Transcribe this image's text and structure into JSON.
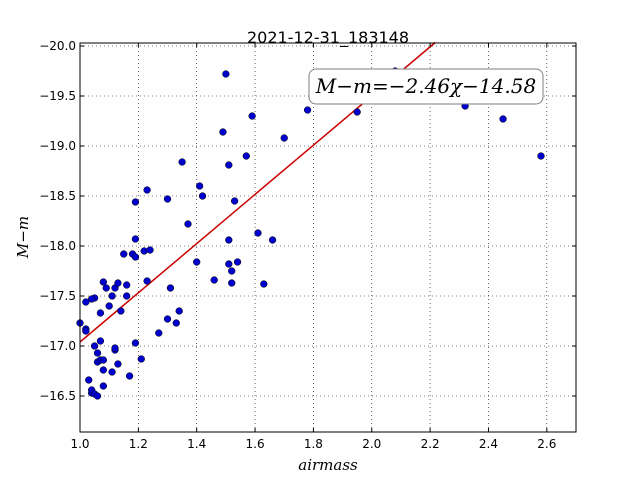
{
  "chart_data": {
    "type": "scatter",
    "title": "2021-12-31_183148",
    "xlabel": "airmass",
    "ylabel": "M−m",
    "xlim": [
      1.0,
      2.7
    ],
    "ylim": [
      -20.03,
      -16.14
    ],
    "y_inverted": true,
    "grid": true,
    "xticks": [
      "1.0",
      "1.2",
      "1.4",
      "1.6",
      "1.8",
      "2.0",
      "2.2",
      "2.4",
      "2.6"
    ],
    "xtick_values": [
      1.0,
      1.2,
      1.4,
      1.6,
      1.8,
      2.0,
      2.2,
      2.4,
      2.6
    ],
    "yticks": [
      "−16.5",
      "−17.0",
      "−17.5",
      "−18.0",
      "−18.5",
      "−19.0",
      "−19.5",
      "−20.0"
    ],
    "ytick_values": [
      -16.5,
      -17.0,
      -17.5,
      -18.0,
      -18.5,
      -19.0,
      -19.5,
      -20.0
    ],
    "annotation": "M−m=−2.46χ−14.58",
    "fit": {
      "slope": -2.46,
      "intercept": -14.58,
      "x_start": 1.0,
      "x_end": 2.218,
      "color": "#cc0000"
    },
    "point_color": "#0000cc",
    "points": [
      {
        "x": 1.0,
        "y": -17.23
      },
      {
        "x": 1.02,
        "y": -17.17
      },
      {
        "x": 1.02,
        "y": -17.15
      },
      {
        "x": 1.02,
        "y": -17.44
      },
      {
        "x": 1.03,
        "y": -16.66
      },
      {
        "x": 1.04,
        "y": -16.53
      },
      {
        "x": 1.04,
        "y": -16.56
      },
      {
        "x": 1.05,
        "y": -16.52
      },
      {
        "x": 1.05,
        "y": -17.48
      },
      {
        "x": 1.04,
        "y": -17.47
      },
      {
        "x": 1.05,
        "y": -17.0
      },
      {
        "x": 1.06,
        "y": -16.84
      },
      {
        "x": 1.06,
        "y": -16.93
      },
      {
        "x": 1.06,
        "y": -16.5
      },
      {
        "x": 1.07,
        "y": -16.86
      },
      {
        "x": 1.07,
        "y": -17.05
      },
      {
        "x": 1.07,
        "y": -17.33
      },
      {
        "x": 1.08,
        "y": -16.6
      },
      {
        "x": 1.08,
        "y": -16.76
      },
      {
        "x": 1.08,
        "y": -16.86
      },
      {
        "x": 1.08,
        "y": -17.64
      },
      {
        "x": 1.09,
        "y": -17.58
      },
      {
        "x": 1.1,
        "y": -17.4
      },
      {
        "x": 1.11,
        "y": -17.5
      },
      {
        "x": 1.11,
        "y": -16.74
      },
      {
        "x": 1.12,
        "y": -16.96
      },
      {
        "x": 1.12,
        "y": -16.98
      },
      {
        "x": 1.12,
        "y": -17.58
      },
      {
        "x": 1.13,
        "y": -17.63
      },
      {
        "x": 1.13,
        "y": -16.82
      },
      {
        "x": 1.14,
        "y": -17.35
      },
      {
        "x": 1.15,
        "y": -17.92
      },
      {
        "x": 1.16,
        "y": -17.61
      },
      {
        "x": 1.16,
        "y": -17.5
      },
      {
        "x": 1.17,
        "y": -16.7
      },
      {
        "x": 1.18,
        "y": -17.92
      },
      {
        "x": 1.19,
        "y": -17.89
      },
      {
        "x": 1.19,
        "y": -17.03
      },
      {
        "x": 1.19,
        "y": -18.07
      },
      {
        "x": 1.19,
        "y": -18.44
      },
      {
        "x": 1.21,
        "y": -16.87
      },
      {
        "x": 1.22,
        "y": -17.95
      },
      {
        "x": 1.23,
        "y": -17.65
      },
      {
        "x": 1.23,
        "y": -18.56
      },
      {
        "x": 1.24,
        "y": -17.96
      },
      {
        "x": 1.27,
        "y": -17.13
      },
      {
        "x": 1.3,
        "y": -17.27
      },
      {
        "x": 1.31,
        "y": -17.58
      },
      {
        "x": 1.3,
        "y": -18.47
      },
      {
        "x": 1.33,
        "y": -17.23
      },
      {
        "x": 1.34,
        "y": -17.35
      },
      {
        "x": 1.35,
        "y": -18.84
      },
      {
        "x": 1.37,
        "y": -18.22
      },
      {
        "x": 1.4,
        "y": -17.84
      },
      {
        "x": 1.41,
        "y": -18.6
      },
      {
        "x": 1.42,
        "y": -18.5
      },
      {
        "x": 1.46,
        "y": -17.66
      },
      {
        "x": 1.49,
        "y": -19.14
      },
      {
        "x": 1.5,
        "y": -19.72
      },
      {
        "x": 1.51,
        "y": -18.06
      },
      {
        "x": 1.51,
        "y": -18.81
      },
      {
        "x": 1.51,
        "y": -17.82
      },
      {
        "x": 1.52,
        "y": -17.75
      },
      {
        "x": 1.52,
        "y": -17.63
      },
      {
        "x": 1.53,
        "y": -18.45
      },
      {
        "x": 1.54,
        "y": -17.84
      },
      {
        "x": 1.57,
        "y": -18.9
      },
      {
        "x": 1.59,
        "y": -19.3
      },
      {
        "x": 1.61,
        "y": -18.13
      },
      {
        "x": 1.63,
        "y": -17.62
      },
      {
        "x": 1.66,
        "y": -18.06
      },
      {
        "x": 1.7,
        "y": -19.08
      },
      {
        "x": 1.78,
        "y": -19.36
      },
      {
        "x": 1.95,
        "y": -19.34
      },
      {
        "x": 2.08,
        "y": -19.75
      },
      {
        "x": 2.32,
        "y": -19.4
      },
      {
        "x": 2.45,
        "y": -19.27
      },
      {
        "x": 2.58,
        "y": -18.9
      }
    ]
  }
}
